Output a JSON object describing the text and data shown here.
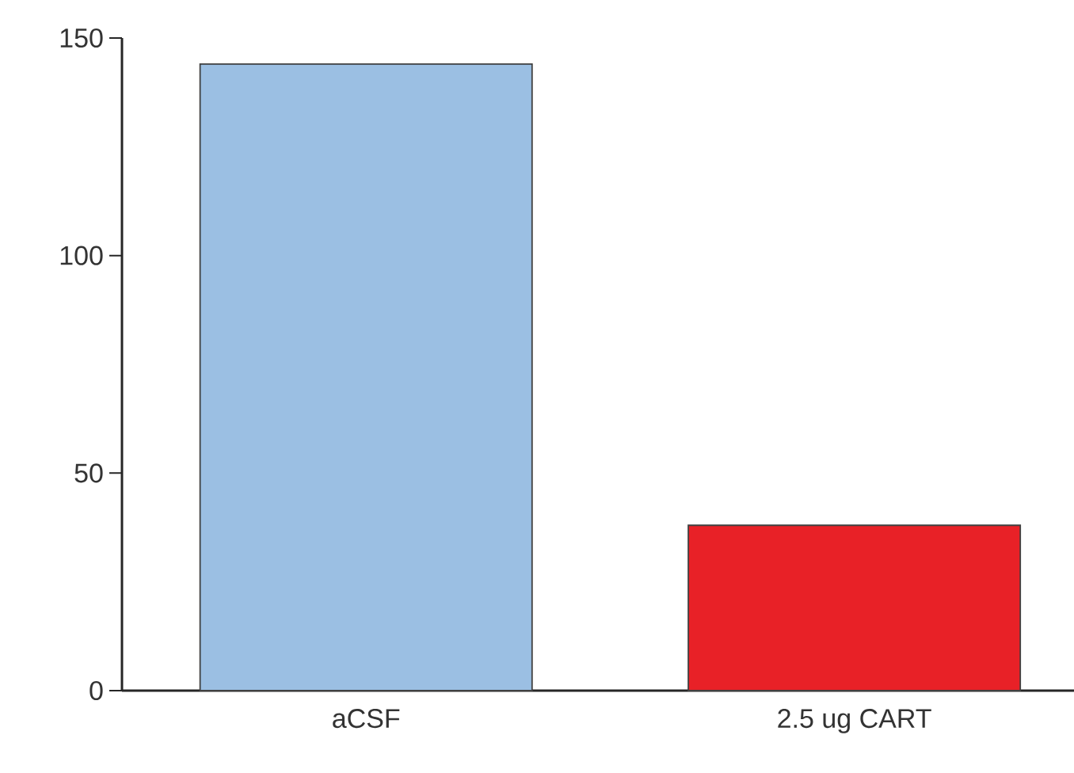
{
  "chart_data": {
    "type": "bar",
    "categories": [
      "aCSF",
      "2.5 ug CART"
    ],
    "values": [
      144,
      38
    ],
    "colors": [
      "#9bbfe3",
      "#e82127"
    ],
    "ylim": [
      0,
      150
    ],
    "yticks": [
      0,
      50,
      100,
      150
    ],
    "grid": false
  }
}
